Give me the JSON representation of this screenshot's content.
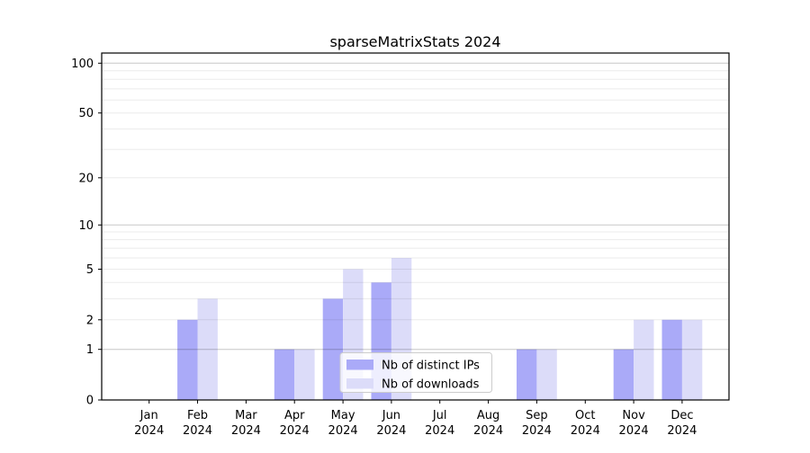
{
  "chart_data": {
    "type": "bar",
    "title": "sparseMatrixStats 2024",
    "categories": [
      "Jan",
      "Feb",
      "Mar",
      "Apr",
      "May",
      "Jun",
      "Jul",
      "Aug",
      "Sep",
      "Oct",
      "Nov",
      "Dec"
    ],
    "x_year_label": "2024",
    "series": [
      {
        "name": "Nb of distinct IPs",
        "color": "#aaaaf8",
        "values": [
          0,
          2,
          0,
          1,
          3,
          4,
          0,
          0,
          1,
          0,
          1,
          2
        ]
      },
      {
        "name": "Nb of downloads",
        "color": "#dcdcf9",
        "values": [
          0,
          3,
          0,
          1,
          5,
          6,
          0,
          0,
          1,
          0,
          2,
          2
        ]
      }
    ],
    "y_axis": {
      "scale": "log1p",
      "tick_labels": [
        0,
        1,
        2,
        5,
        10,
        20,
        50,
        100
      ],
      "major_gridlines": [
        1,
        10,
        100
      ],
      "minor_gridlines": [
        2,
        3,
        4,
        5,
        6,
        7,
        8,
        9,
        20,
        30,
        40,
        50,
        60,
        70,
        80,
        90
      ],
      "range_top_value": 115
    },
    "legend": {
      "entries": [
        "Nb of distinct IPs",
        "Nb of downloads"
      ],
      "position": "inside-bottom-center"
    },
    "grid": true
  },
  "colors": {
    "background": "#ffffff",
    "bar_distinct_ips": "#aaaaf8",
    "bar_downloads": "#dcdcf9",
    "axis": "#000000",
    "major_grid": "rgba(0,0,0,0.22)",
    "minor_grid": "rgba(0,0,0,0.08)",
    "legend_border": "#cccccc",
    "legend_background": "rgba(255,255,255,0.8)"
  }
}
